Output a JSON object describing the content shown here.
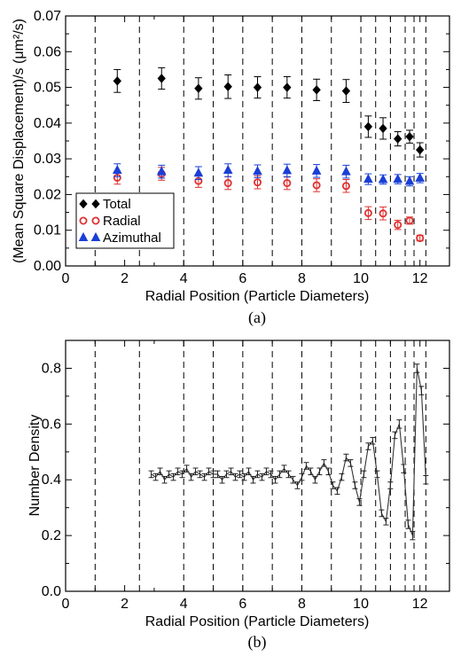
{
  "chart_data": [
    {
      "type": "scatter",
      "panel": "a",
      "panel_label": "(a)",
      "xlabel": "Radial Position (Particle Diameters)",
      "ylabel": "(Mean Square Displacement)/s (μm²/s)",
      "xlim": [
        0,
        13
      ],
      "ylim": [
        0,
        0.07
      ],
      "xticks": [
        0,
        2,
        4,
        6,
        8,
        10,
        12
      ],
      "yticks": [
        0.0,
        0.01,
        0.02,
        0.03,
        0.04,
        0.05,
        0.06,
        0.07
      ],
      "ytick_labels": [
        "0.00",
        "0.01",
        "0.02",
        "0.03",
        "0.04",
        "0.05",
        "0.06",
        "0.07"
      ],
      "boundaries": [
        1.0,
        2.5,
        4.0,
        5.0,
        6.0,
        7.0,
        8.0,
        9.0,
        10.0,
        10.5,
        11.0,
        11.5,
        11.8,
        12.2
      ],
      "legend_placement": "lower-left",
      "series": [
        {
          "name": "Total",
          "marker": "diamond",
          "color": "#000000",
          "x": [
            1.75,
            3.25,
            4.5,
            5.5,
            6.5,
            7.5,
            8.5,
            9.5,
            10.25,
            10.75,
            11.25,
            11.65,
            12.0
          ],
          "y": [
            0.0518,
            0.0525,
            0.0497,
            0.0502,
            0.05,
            0.05,
            0.0493,
            0.049,
            0.039,
            0.0385,
            0.0356,
            0.0362,
            0.0325
          ],
          "err": [
            0.0032,
            0.003,
            0.003,
            0.0033,
            0.003,
            0.003,
            0.003,
            0.0032,
            0.003,
            0.003,
            0.002,
            0.0018,
            0.002
          ]
        },
        {
          "name": "Radial",
          "marker": "circle",
          "color": "#e03030",
          "x": [
            1.75,
            3.25,
            4.5,
            5.5,
            6.5,
            7.5,
            8.5,
            9.5,
            10.25,
            10.75,
            11.25,
            11.65,
            12.0
          ],
          "y": [
            0.0247,
            0.0258,
            0.0238,
            0.0232,
            0.0234,
            0.0232,
            0.0226,
            0.0224,
            0.0148,
            0.0147,
            0.0115,
            0.0127,
            0.0078
          ],
          "err": [
            0.0018,
            0.0018,
            0.0018,
            0.0018,
            0.0018,
            0.0018,
            0.0018,
            0.0018,
            0.0018,
            0.0018,
            0.0013,
            0.001,
            0.0008
          ]
        },
        {
          "name": "Azimuthal",
          "marker": "triangle",
          "color": "#1a3fd6",
          "x": [
            1.75,
            3.25,
            4.5,
            5.5,
            6.5,
            7.5,
            8.5,
            9.5,
            10.25,
            10.75,
            11.25,
            11.65,
            12.0
          ],
          "y": [
            0.0268,
            0.0264,
            0.026,
            0.0268,
            0.0265,
            0.0267,
            0.0266,
            0.0264,
            0.0243,
            0.0242,
            0.0243,
            0.0237,
            0.0246
          ],
          "err": [
            0.0018,
            0.0018,
            0.0018,
            0.0018,
            0.0018,
            0.0018,
            0.0018,
            0.0018,
            0.0015,
            0.0013,
            0.0013,
            0.0013,
            0.0013
          ]
        }
      ]
    },
    {
      "type": "line",
      "panel": "b",
      "panel_label": "(b)",
      "xlabel": "Radial Position (Particle Diameters)",
      "ylabel": "Number Density",
      "xlim": [
        0,
        13
      ],
      "ylim": [
        0,
        0.9
      ],
      "xticks": [
        0,
        2,
        4,
        6,
        8,
        10,
        12
      ],
      "yticks": [
        0.0,
        0.2,
        0.4,
        0.6,
        0.8
      ],
      "ytick_labels": [
        "0.0",
        "0.2",
        "0.4",
        "0.6",
        "0.8"
      ],
      "boundaries": [
        1.0,
        2.5,
        4.0,
        5.0,
        6.0,
        7.0,
        8.0,
        9.0,
        10.0,
        10.5,
        11.0,
        11.5,
        11.8,
        12.2
      ],
      "series": [
        {
          "name": "",
          "x": [
            2.9,
            3.05,
            3.2,
            3.35,
            3.5,
            3.65,
            3.8,
            3.95,
            4.1,
            4.25,
            4.4,
            4.55,
            4.7,
            4.85,
            5.0,
            5.15,
            5.3,
            5.45,
            5.6,
            5.75,
            5.9,
            6.05,
            6.2,
            6.35,
            6.5,
            6.65,
            6.8,
            6.95,
            7.1,
            7.25,
            7.4,
            7.55,
            7.7,
            7.85,
            8.0,
            8.15,
            8.3,
            8.45,
            8.6,
            8.75,
            8.9,
            9.05,
            9.2,
            9.35,
            9.5,
            9.65,
            9.8,
            9.95,
            10.1,
            10.25,
            10.4,
            10.55,
            10.7,
            10.85,
            11.0,
            11.15,
            11.3,
            11.45,
            11.6,
            11.75,
            11.9,
            12.05,
            12.2
          ],
          "y": [
            0.42,
            0.41,
            0.43,
            0.4,
            0.42,
            0.41,
            0.43,
            0.42,
            0.44,
            0.41,
            0.43,
            0.42,
            0.41,
            0.43,
            0.42,
            0.42,
            0.4,
            0.42,
            0.43,
            0.41,
            0.42,
            0.41,
            0.43,
            0.4,
            0.42,
            0.41,
            0.43,
            0.42,
            0.4,
            0.42,
            0.44,
            0.42,
            0.4,
            0.38,
            0.41,
            0.45,
            0.43,
            0.4,
            0.43,
            0.46,
            0.43,
            0.38,
            0.36,
            0.41,
            0.48,
            0.46,
            0.38,
            0.32,
            0.42,
            0.52,
            0.54,
            0.42,
            0.28,
            0.25,
            0.38,
            0.56,
            0.6,
            0.44,
            0.24,
            0.2,
            0.8,
            0.72,
            0.4
          ],
          "err": [
            0.012,
            0.012,
            0.012,
            0.012,
            0.012,
            0.012,
            0.012,
            0.012,
            0.012,
            0.012,
            0.012,
            0.012,
            0.012,
            0.012,
            0.012,
            0.012,
            0.012,
            0.012,
            0.012,
            0.012,
            0.012,
            0.012,
            0.012,
            0.012,
            0.012,
            0.012,
            0.012,
            0.012,
            0.012,
            0.012,
            0.012,
            0.012,
            0.012,
            0.012,
            0.012,
            0.012,
            0.012,
            0.012,
            0.012,
            0.012,
            0.012,
            0.012,
            0.012,
            0.012,
            0.012,
            0.012,
            0.012,
            0.012,
            0.012,
            0.012,
            0.012,
            0.012,
            0.012,
            0.012,
            0.012,
            0.012,
            0.015,
            0.015,
            0.015,
            0.015,
            0.015,
            0.015,
            0.015
          ]
        }
      ]
    }
  ]
}
